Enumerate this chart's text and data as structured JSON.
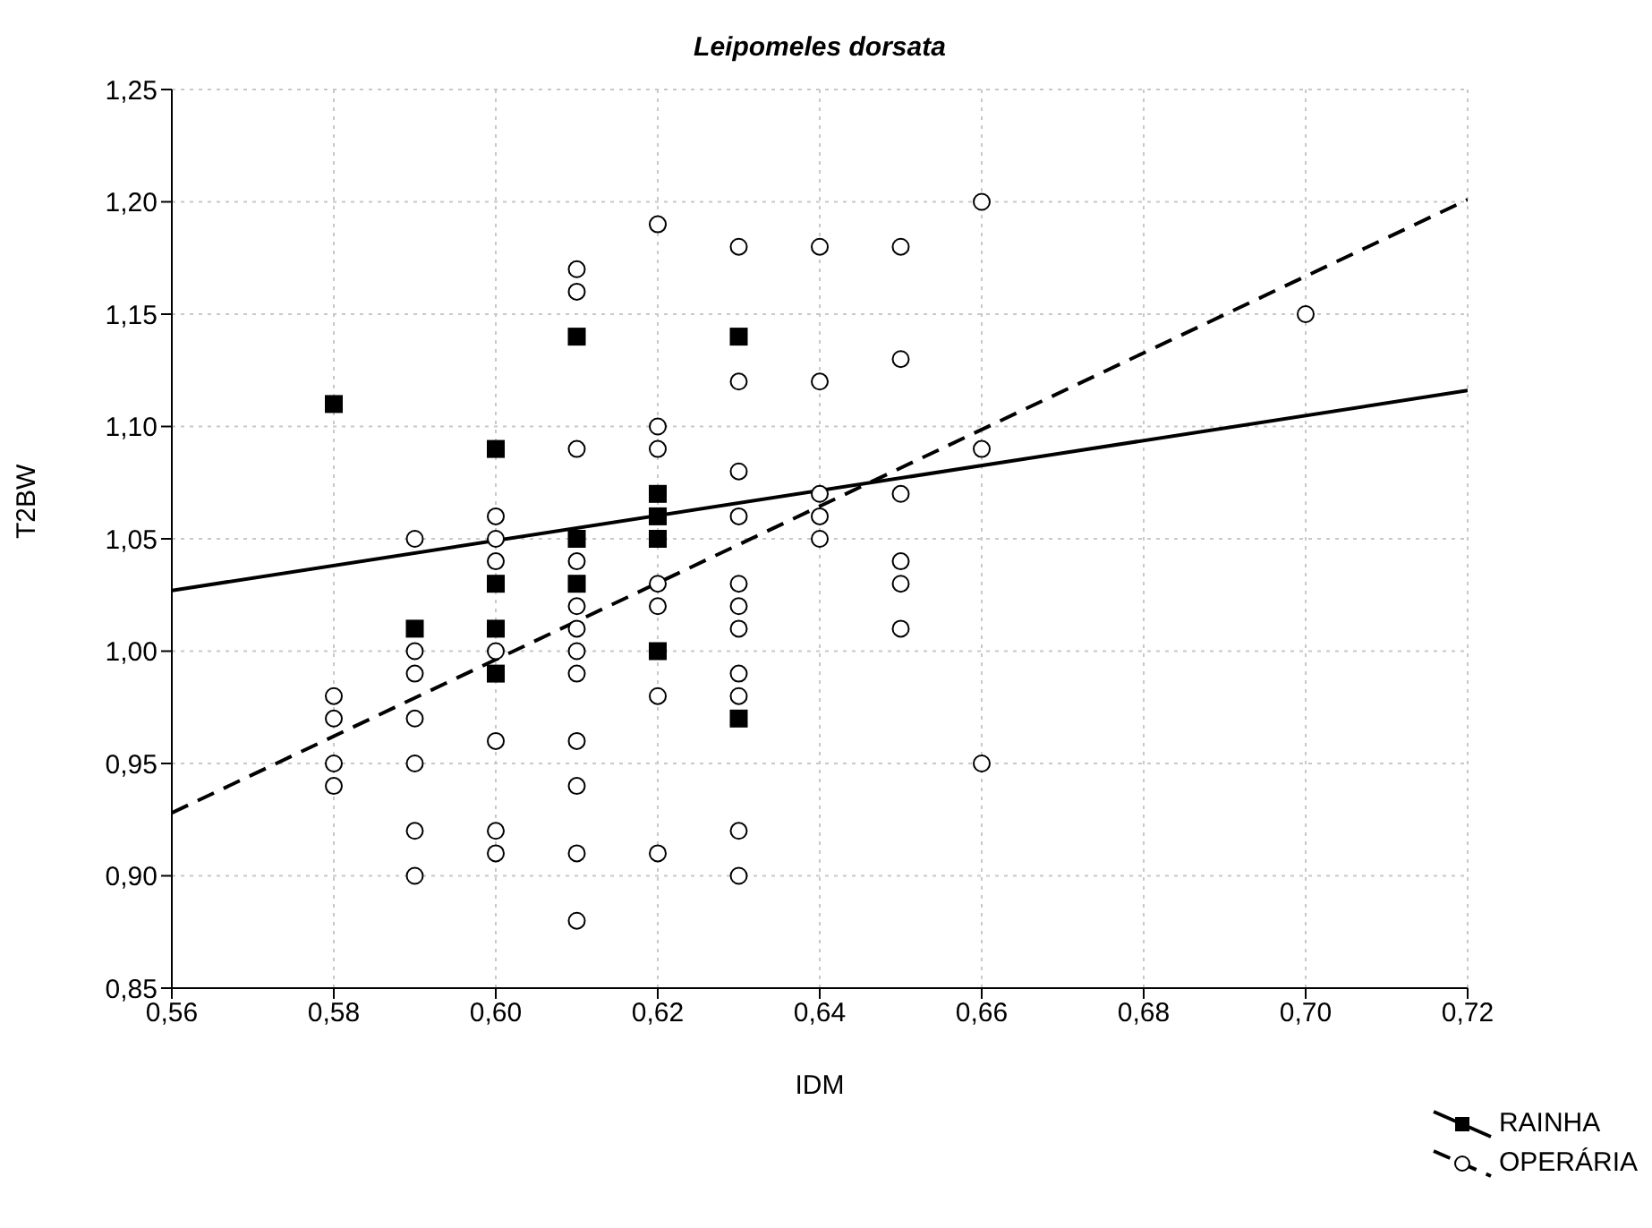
{
  "chart_data": {
    "type": "scatter",
    "title": "Leipomeles dorsata",
    "xlabel": "IDM",
    "ylabel": "T2BW",
    "xlim": [
      0.56,
      0.72
    ],
    "xticks": [
      {
        "value": 0.56,
        "label": "0,56"
      },
      {
        "value": 0.58,
        "label": "0,58"
      },
      {
        "value": 0.6,
        "label": "0,60"
      },
      {
        "value": 0.62,
        "label": "0,62"
      },
      {
        "value": 0.64,
        "label": "0,64"
      },
      {
        "value": 0.66,
        "label": "0,66"
      },
      {
        "value": 0.68,
        "label": "0,68"
      },
      {
        "value": 0.7,
        "label": "0,70"
      },
      {
        "value": 0.72,
        "label": "0,72"
      }
    ],
    "ylim": [
      0.85,
      1.25
    ],
    "yticks": [
      {
        "value": 0.85,
        "label": "0,85"
      },
      {
        "value": 0.9,
        "label": "0,90"
      },
      {
        "value": 0.95,
        "label": "0,95"
      },
      {
        "value": 1.0,
        "label": "1,00"
      },
      {
        "value": 1.05,
        "label": "1,05"
      },
      {
        "value": 1.1,
        "label": "1,10"
      },
      {
        "value": 1.15,
        "label": "1,15"
      },
      {
        "value": 1.2,
        "label": "1,20"
      },
      {
        "value": 1.25,
        "label": "1,25"
      }
    ],
    "grid": true,
    "legend": "bottom right",
    "series": [
      {
        "name": "RAINHA",
        "marker": "square",
        "color": "#000000",
        "x": [
          0.58,
          0.59,
          0.6,
          0.6,
          0.6,
          0.6,
          0.61,
          0.61,
          0.61,
          0.62,
          0.62,
          0.62,
          0.62,
          0.63,
          0.63
        ],
        "values": [
          1.11,
          1.01,
          1.09,
          1.03,
          1.01,
          0.99,
          1.14,
          1.05,
          1.03,
          1.07,
          1.06,
          1.05,
          1.0,
          1.14,
          0.97
        ]
      },
      {
        "type": "line",
        "line_style": "solid",
        "color": "#000000",
        "x": [
          0.56,
          0.72
        ],
        "values": [
          1.027,
          1.116
        ]
      },
      {
        "name": "OPERÁRIA",
        "marker": "circle",
        "color": "#000000",
        "x": [
          0.58,
          0.58,
          0.58,
          0.58,
          0.59,
          0.59,
          0.59,
          0.59,
          0.59,
          0.59,
          0.59,
          0.6,
          0.6,
          0.6,
          0.6,
          0.6,
          0.6,
          0.6,
          0.61,
          0.61,
          0.61,
          0.61,
          0.61,
          0.61,
          0.61,
          0.61,
          0.61,
          0.61,
          0.61,
          0.61,
          0.62,
          0.62,
          0.62,
          0.62,
          0.62,
          0.62,
          0.62,
          0.63,
          0.63,
          0.63,
          0.63,
          0.63,
          0.63,
          0.63,
          0.63,
          0.63,
          0.63,
          0.63,
          0.64,
          0.64,
          0.64,
          0.64,
          0.64,
          0.65,
          0.65,
          0.65,
          0.65,
          0.65,
          0.65,
          0.66,
          0.66,
          0.66,
          0.7
        ],
        "values": [
          0.98,
          0.97,
          0.95,
          0.94,
          1.05,
          1.0,
          0.99,
          0.97,
          0.95,
          0.92,
          0.9,
          1.06,
          1.05,
          1.04,
          1.0,
          0.96,
          0.92,
          0.91,
          1.17,
          1.16,
          1.09,
          1.04,
          1.02,
          1.01,
          1.0,
          0.99,
          0.96,
          0.94,
          0.91,
          0.88,
          1.19,
          1.1,
          1.09,
          1.03,
          1.02,
          0.98,
          0.91,
          1.18,
          1.12,
          1.08,
          1.06,
          1.03,
          1.02,
          1.01,
          0.99,
          0.98,
          0.92,
          0.9,
          1.18,
          1.12,
          1.07,
          1.06,
          1.05,
          1.18,
          1.13,
          1.07,
          1.04,
          1.03,
          1.01,
          1.2,
          1.09,
          0.95,
          1.15
        ]
      },
      {
        "type": "line",
        "line_style": "dashed",
        "color": "#000000",
        "x": [
          0.56,
          0.72
        ],
        "values": [
          0.928,
          1.201
        ]
      }
    ]
  }
}
